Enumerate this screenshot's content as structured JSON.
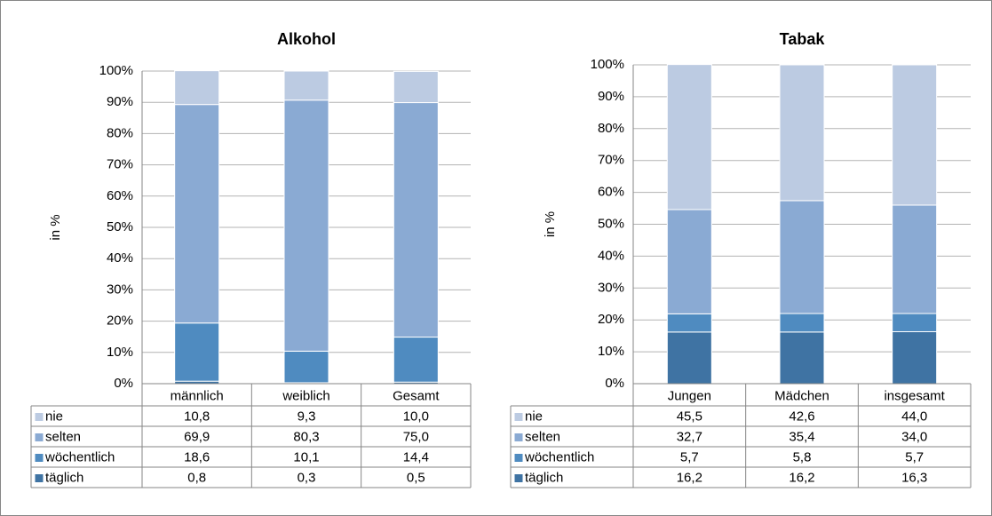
{
  "chart_data": [
    {
      "type": "stacked_bar",
      "title": "Alkohol",
      "y_label": "in %",
      "categories": [
        "männlich",
        "weiblich",
        "Gesamt"
      ],
      "series": [
        {
          "name": "nie",
          "color": "#bccbe2",
          "values": [
            10.8,
            9.3,
            10.0
          ],
          "value_labels": [
            "10,8",
            "9,3",
            "10,0"
          ]
        },
        {
          "name": "selten",
          "color": "#8aaad3",
          "values": [
            69.9,
            80.3,
            75.0
          ],
          "value_labels": [
            "69,9",
            "80,3",
            "75,0"
          ]
        },
        {
          "name": "wöchentlich",
          "color": "#4f8bc0",
          "values": [
            18.6,
            10.1,
            14.4
          ],
          "value_labels": [
            "18,6",
            "10,1",
            "14,4"
          ]
        },
        {
          "name": "täglich",
          "color": "#3f73a3",
          "values": [
            0.8,
            0.3,
            0.5
          ],
          "value_labels": [
            "0,8",
            "0,3",
            "0,5"
          ]
        }
      ],
      "ylim": [
        0,
        100
      ],
      "yticks": [
        {
          "value": 0,
          "label": "0%"
        },
        {
          "value": 10,
          "label": "10%"
        },
        {
          "value": 20,
          "label": "20%"
        },
        {
          "value": 30,
          "label": "30%"
        },
        {
          "value": 40,
          "label": "40%"
        },
        {
          "value": 50,
          "label": "50%"
        },
        {
          "value": 60,
          "label": "60%"
        },
        {
          "value": 70,
          "label": "70%"
        },
        {
          "value": 80,
          "label": "80%"
        },
        {
          "value": 90,
          "label": "90%"
        },
        {
          "value": 100,
          "label": "100%"
        }
      ],
      "grid": true
    },
    {
      "type": "stacked_bar",
      "title": "Tabak",
      "y_label": "in %",
      "categories": [
        "Jungen",
        "Mädchen",
        "insgesamt"
      ],
      "series": [
        {
          "name": "nie",
          "color": "#bccbe2",
          "values": [
            45.5,
            42.6,
            44.0
          ],
          "value_labels": [
            "45,5",
            "42,6",
            "44,0"
          ]
        },
        {
          "name": "selten",
          "color": "#8aaad3",
          "values": [
            32.7,
            35.4,
            34.0
          ],
          "value_labels": [
            "32,7",
            "35,4",
            "34,0"
          ]
        },
        {
          "name": "wöchentlich",
          "color": "#4f8bc0",
          "values": [
            5.7,
            5.8,
            5.7
          ],
          "value_labels": [
            "5,7",
            "5,8",
            "5,7"
          ]
        },
        {
          "name": "täglich",
          "color": "#3f73a3",
          "values": [
            16.2,
            16.2,
            16.3
          ],
          "value_labels": [
            "16,2",
            "16,2",
            "16,3"
          ]
        }
      ],
      "ylim": [
        0,
        100
      ],
      "yticks": [
        {
          "value": 0,
          "label": "0%"
        },
        {
          "value": 10,
          "label": "10%"
        },
        {
          "value": 20,
          "label": "20%"
        },
        {
          "value": 30,
          "label": "30%"
        },
        {
          "value": 40,
          "label": "40%"
        },
        {
          "value": 50,
          "label": "50%"
        },
        {
          "value": 60,
          "label": "60%"
        },
        {
          "value": 70,
          "label": "70%"
        },
        {
          "value": 80,
          "label": "80%"
        },
        {
          "value": 90,
          "label": "90%"
        },
        {
          "value": 100,
          "label": "100%"
        }
      ],
      "grid": true
    }
  ]
}
